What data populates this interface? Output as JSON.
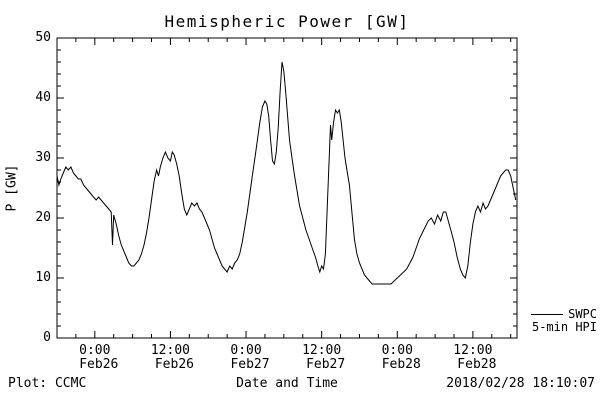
{
  "footer": {
    "plot_credit": "Plot: CCMC",
    "timestamp": "2018/02/28 18:10:07"
  },
  "legend": {
    "source": "SWPC",
    "series": "5-min HPI"
  },
  "chart_data": {
    "type": "line",
    "title": "Hemispheric Power [GW]",
    "xlabel": "Date and Time",
    "ylabel": "P [GW]",
    "ylim": [
      0,
      50
    ],
    "xlim_hours": [
      0,
      73
    ],
    "grid": false,
    "line_color": "#000000",
    "background": "#ffffff",
    "legend_position": "outside-right-bottom",
    "y_ticks": [
      0,
      10,
      20,
      30,
      40,
      50
    ],
    "x_ticks": [
      {
        "t": 6,
        "time": "0:00",
        "date": "Feb26"
      },
      {
        "t": 18,
        "time": "12:00",
        "date": "Feb26"
      },
      {
        "t": 30,
        "time": "0:00",
        "date": "Feb27"
      },
      {
        "t": 42,
        "time": "12:00",
        "date": "Feb27"
      },
      {
        "t": 54,
        "time": "0:00",
        "date": "Feb28"
      },
      {
        "t": 66,
        "time": "12:00",
        "date": "Feb28"
      }
    ],
    "series": [
      {
        "name": "SWPC 5-min HPI",
        "points": [
          [
            0,
            27
          ],
          [
            0.3,
            25.5
          ],
          [
            0.6,
            26.5
          ],
          [
            1,
            27.5
          ],
          [
            1.4,
            28.5
          ],
          [
            1.8,
            28
          ],
          [
            2.2,
            28.5
          ],
          [
            2.6,
            27.5
          ],
          [
            3,
            27
          ],
          [
            3.4,
            26.5
          ],
          [
            3.8,
            26.5
          ],
          [
            4.2,
            25.5
          ],
          [
            4.6,
            25
          ],
          [
            5,
            24.5
          ],
          [
            5.4,
            24
          ],
          [
            5.8,
            23.5
          ],
          [
            6.2,
            23
          ],
          [
            6.6,
            23.5
          ],
          [
            7,
            23
          ],
          [
            7.4,
            22.5
          ],
          [
            7.8,
            22
          ],
          [
            8.2,
            21.5
          ],
          [
            8.6,
            21
          ],
          [
            8.8,
            15.5
          ],
          [
            9,
            20.5
          ],
          [
            9.4,
            19
          ],
          [
            9.8,
            17
          ],
          [
            10.2,
            15.5
          ],
          [
            10.6,
            14.5
          ],
          [
            11,
            13.5
          ],
          [
            11.4,
            12.5
          ],
          [
            11.8,
            12
          ],
          [
            12.2,
            12
          ],
          [
            12.6,
            12.5
          ],
          [
            13,
            13
          ],
          [
            13.4,
            14
          ],
          [
            13.8,
            15.5
          ],
          [
            14.2,
            17.5
          ],
          [
            14.6,
            20
          ],
          [
            15,
            23
          ],
          [
            15.4,
            26
          ],
          [
            15.8,
            28
          ],
          [
            16.1,
            27
          ],
          [
            16.4,
            28.5
          ],
          [
            16.8,
            30
          ],
          [
            17.2,
            31
          ],
          [
            17.6,
            30
          ],
          [
            18,
            29.5
          ],
          [
            18.3,
            31
          ],
          [
            18.6,
            30.5
          ],
          [
            19,
            29
          ],
          [
            19.4,
            27
          ],
          [
            19.8,
            24
          ],
          [
            20.2,
            21.5
          ],
          [
            20.6,
            20.5
          ],
          [
            21,
            21.5
          ],
          [
            21.4,
            22.5
          ],
          [
            21.8,
            22
          ],
          [
            22.2,
            22.5
          ],
          [
            22.6,
            21.5
          ],
          [
            23,
            21
          ],
          [
            23.4,
            20
          ],
          [
            23.8,
            19
          ],
          [
            24.2,
            18
          ],
          [
            24.6,
            16.5
          ],
          [
            25,
            15
          ],
          [
            25.4,
            14
          ],
          [
            25.8,
            13
          ],
          [
            26.2,
            12
          ],
          [
            26.6,
            11.5
          ],
          [
            27,
            11
          ],
          [
            27.4,
            12
          ],
          [
            27.8,
            11.5
          ],
          [
            28.2,
            12.5
          ],
          [
            28.6,
            13
          ],
          [
            29,
            14
          ],
          [
            29.4,
            16
          ],
          [
            29.8,
            18.5
          ],
          [
            30.2,
            21
          ],
          [
            30.6,
            24
          ],
          [
            31,
            27
          ],
          [
            31.4,
            30
          ],
          [
            31.8,
            33
          ],
          [
            32.2,
            36
          ],
          [
            32.6,
            38.5
          ],
          [
            33,
            39.5
          ],
          [
            33.3,
            39
          ],
          [
            33.6,
            37
          ],
          [
            33.9,
            33
          ],
          [
            34.2,
            29.5
          ],
          [
            34.5,
            29
          ],
          [
            34.8,
            31
          ],
          [
            35.1,
            35
          ],
          [
            35.4,
            41
          ],
          [
            35.7,
            46
          ],
          [
            36,
            44.5
          ],
          [
            36.3,
            41
          ],
          [
            36.6,
            37
          ],
          [
            36.9,
            33
          ],
          [
            37.3,
            30
          ],
          [
            37.7,
            27
          ],
          [
            38.1,
            24.5
          ],
          [
            38.5,
            22
          ],
          [
            39,
            20
          ],
          [
            39.5,
            18
          ],
          [
            40,
            16.5
          ],
          [
            40.5,
            15
          ],
          [
            41,
            13.5
          ],
          [
            41.4,
            12
          ],
          [
            41.7,
            11
          ],
          [
            42,
            12
          ],
          [
            42.3,
            11.5
          ],
          [
            42.6,
            14
          ],
          [
            42.9,
            22
          ],
          [
            43.2,
            30
          ],
          [
            43.4,
            35.5
          ],
          [
            43.6,
            33
          ],
          [
            43.9,
            36
          ],
          [
            44.2,
            38
          ],
          [
            44.5,
            37.5
          ],
          [
            44.8,
            38
          ],
          [
            45.1,
            36
          ],
          [
            45.4,
            33
          ],
          [
            45.7,
            30
          ],
          [
            46,
            28
          ],
          [
            46.4,
            25.5
          ],
          [
            46.8,
            21
          ],
          [
            47.2,
            16.5
          ],
          [
            47.6,
            14
          ],
          [
            48,
            12.5
          ],
          [
            48.4,
            11.5
          ],
          [
            48.8,
            10.5
          ],
          [
            49.2,
            10
          ],
          [
            49.6,
            9.5
          ],
          [
            50,
            9
          ],
          [
            51,
            9
          ],
          [
            52,
            9
          ],
          [
            53,
            9
          ],
          [
            53.5,
            9.5
          ],
          [
            54,
            10
          ],
          [
            54.5,
            10.5
          ],
          [
            55,
            11
          ],
          [
            55.5,
            11.5
          ],
          [
            56,
            12.5
          ],
          [
            56.5,
            13.5
          ],
          [
            57,
            15
          ],
          [
            57.5,
            16.5
          ],
          [
            58.2,
            18
          ],
          [
            58.9,
            19.5
          ],
          [
            59.4,
            20
          ],
          [
            59.9,
            19
          ],
          [
            60.4,
            20.5
          ],
          [
            60.9,
            19.5
          ],
          [
            61.3,
            21
          ],
          [
            61.7,
            21
          ],
          [
            62.1,
            19.5
          ],
          [
            62.5,
            18
          ],
          [
            63,
            16
          ],
          [
            63.5,
            13.5
          ],
          [
            64,
            11.5
          ],
          [
            64.4,
            10.5
          ],
          [
            64.8,
            10
          ],
          [
            65.2,
            12
          ],
          [
            65.6,
            16
          ],
          [
            66,
            19
          ],
          [
            66.4,
            21
          ],
          [
            66.8,
            22
          ],
          [
            67.2,
            21
          ],
          [
            67.6,
            22.5
          ],
          [
            68,
            21.5
          ],
          [
            68.4,
            22
          ],
          [
            68.8,
            23
          ],
          [
            69.2,
            24
          ],
          [
            69.6,
            25
          ],
          [
            70,
            26
          ],
          [
            70.4,
            27
          ],
          [
            70.8,
            27.5
          ],
          [
            71.2,
            28
          ],
          [
            71.6,
            28
          ],
          [
            72,
            27
          ],
          [
            72.4,
            25
          ],
          [
            72.8,
            23
          ]
        ]
      }
    ]
  }
}
